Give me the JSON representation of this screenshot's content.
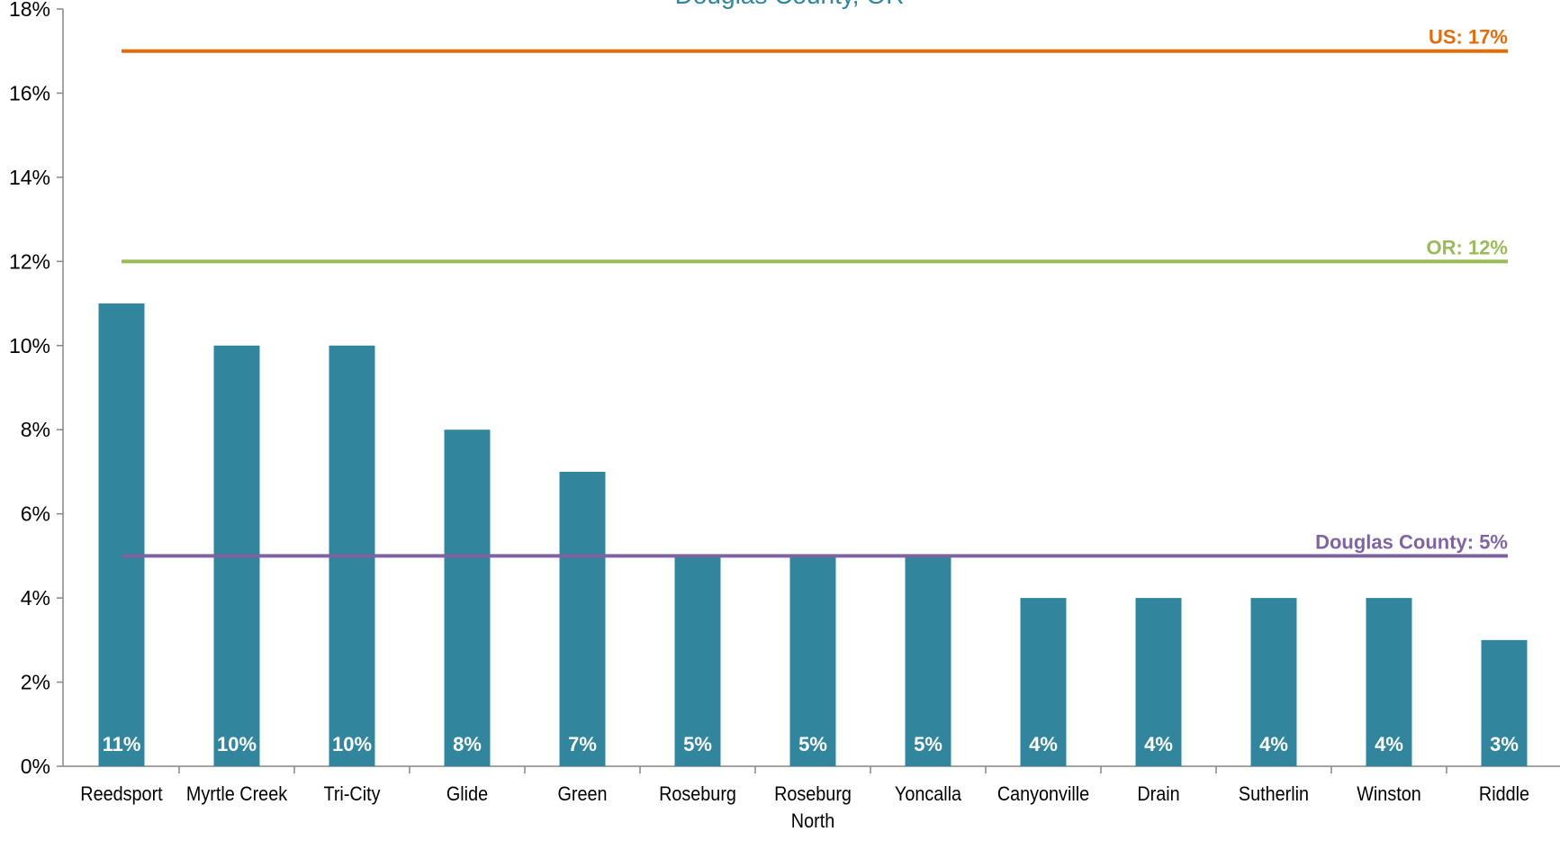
{
  "chart_data": {
    "type": "bar",
    "title": "Douglas County, OR",
    "categories": [
      "Reedsport",
      "Myrtle Creek",
      "Tri-City",
      "Glide",
      "Green",
      "Roseburg",
      "Roseburg North",
      "Yoncalla",
      "Canyonville",
      "Drain",
      "Sutherlin",
      "Winston",
      "Riddle"
    ],
    "values": [
      11,
      10,
      10,
      8,
      7,
      5,
      5,
      5,
      4,
      4,
      4,
      4,
      3
    ],
    "value_labels": [
      "11%",
      "10%",
      "10%",
      "8%",
      "7%",
      "5%",
      "5%",
      "5%",
      "4%",
      "4%",
      "4%",
      "4%",
      "3%"
    ],
    "color": "#31859c",
    "ylim": [
      0,
      18
    ],
    "yticks": [
      {
        "value": 0,
        "label": "0%"
      },
      {
        "value": 2,
        "label": "2%"
      },
      {
        "value": 4,
        "label": "4%"
      },
      {
        "value": 6,
        "label": "6%"
      },
      {
        "value": 8,
        "label": "8%"
      },
      {
        "value": 10,
        "label": "10%"
      },
      {
        "value": 12,
        "label": "12%"
      },
      {
        "value": 14,
        "label": "14%"
      },
      {
        "value": 16,
        "label": "16%"
      },
      {
        "value": 18,
        "label": "18%"
      }
    ],
    "reference_lines": [
      {
        "label": "US: 17%",
        "value": 17,
        "color": "#e46c0a"
      },
      {
        "label": "OR: 12%",
        "value": 12,
        "color": "#9bbb59"
      },
      {
        "label": "Douglas County: 5%",
        "value": 5,
        "color": "#8064a2"
      }
    ]
  }
}
